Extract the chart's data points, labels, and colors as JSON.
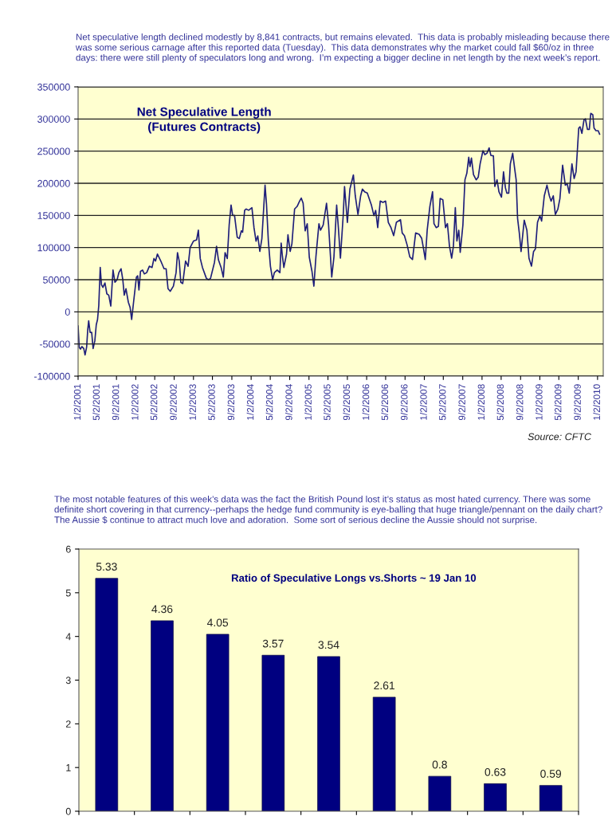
{
  "chart_data": [
    {
      "type": "line",
      "title": "Net Speculative Length\n(Futures Contracts)",
      "color": "#1f1f7a",
      "grid": "y",
      "xlim": [
        "2001-01-02",
        "2010-02-07"
      ],
      "ylim": [
        -100000,
        350000
      ],
      "yticks": [
        -100000,
        -50000,
        0,
        50000,
        100000,
        150000,
        200000,
        250000,
        300000,
        350000
      ],
      "xticks": [
        {
          "value": "2001-01-02",
          "label": "1/2/2001"
        },
        {
          "value": "2001-05-02",
          "label": "5/2/2001"
        },
        {
          "value": "2001-09-02",
          "label": "9/2/2001"
        },
        {
          "value": "2002-01-02",
          "label": "1/2/2002"
        },
        {
          "value": "2002-05-02",
          "label": "5/2/2002"
        },
        {
          "value": "2002-09-02",
          "label": "9/2/2002"
        },
        {
          "value": "2003-01-02",
          "label": "1/2/2003"
        },
        {
          "value": "2003-05-02",
          "label": "5/2/2003"
        },
        {
          "value": "2003-09-02",
          "label": "9/2/2003"
        },
        {
          "value": "2004-01-02",
          "label": "1/2/2004"
        },
        {
          "value": "2004-05-02",
          "label": "5/2/2004"
        },
        {
          "value": "2004-09-02",
          "label": "9/2/2004"
        },
        {
          "value": "2005-01-02",
          "label": "1/2/2005"
        },
        {
          "value": "2005-05-02",
          "label": "5/2/2005"
        },
        {
          "value": "2005-09-02",
          "label": "9/2/2005"
        },
        {
          "value": "2006-01-02",
          "label": "1/2/2006"
        },
        {
          "value": "2006-05-02",
          "label": "5/2/2006"
        },
        {
          "value": "2006-09-02",
          "label": "9/2/2006"
        },
        {
          "value": "2007-01-02",
          "label": "1/2/2007"
        },
        {
          "value": "2007-05-02",
          "label": "5/2/2007"
        },
        {
          "value": "2007-09-02",
          "label": "9/2/2007"
        },
        {
          "value": "2008-01-02",
          "label": "1/2/2008"
        },
        {
          "value": "2008-05-02",
          "label": "5/2/2008"
        },
        {
          "value": "2008-09-02",
          "label": "9/2/2008"
        },
        {
          "value": "2009-01-02",
          "label": "1/2/2009"
        },
        {
          "value": "2009-05-02",
          "label": "5/2/2009"
        },
        {
          "value": "2009-09-02",
          "label": "9/2/2009"
        },
        {
          "value": "2010-01-02",
          "label": "1/2/2010"
        }
      ],
      "x": [
        "2001-01-02",
        "2001-01-09",
        "2001-01-17",
        "2001-01-26",
        "2001-02-07",
        "2001-02-15",
        "2001-02-25",
        "2001-03-04",
        "2001-03-10",
        "2001-03-19",
        "2001-03-29",
        "2001-04-07",
        "2001-04-18",
        "2001-04-27",
        "2001-05-05",
        "2001-05-13",
        "2001-05-22",
        "2001-05-30",
        "2001-06-08",
        "2001-06-21",
        "2001-07-03",
        "2001-07-15",
        "2001-07-28",
        "2001-08-11",
        "2001-08-23",
        "2001-09-06",
        "2001-09-17",
        "2001-10-01",
        "2001-10-12",
        "2001-10-21",
        "2001-11-01",
        "2001-11-16",
        "2001-11-27",
        "2001-12-07",
        "2001-12-19",
        "2002-01-06",
        "2002-01-14",
        "2002-01-22",
        "2002-02-01",
        "2002-02-14",
        "2002-02-25",
        "2002-03-12",
        "2002-03-29",
        "2002-04-15",
        "2002-04-27",
        "2002-05-07",
        "2002-05-19",
        "2002-06-13",
        "2002-06-30",
        "2002-07-13",
        "2002-07-25",
        "2002-08-08",
        "2002-08-28",
        "2002-09-14",
        "2002-09-23",
        "2002-10-04",
        "2002-10-14",
        "2002-10-26",
        "2002-11-13",
        "2002-11-29",
        "2002-12-12",
        "2003-01-02",
        "2003-01-22",
        "2003-02-02",
        "2003-02-14",
        "2003-02-28",
        "2003-03-25",
        "2003-04-08",
        "2003-04-20",
        "2003-05-15",
        "2003-05-28",
        "2003-06-09",
        "2003-06-26",
        "2003-07-10",
        "2003-07-21",
        "2003-08-04",
        "2003-08-16",
        "2003-08-28",
        "2003-09-07",
        "2003-09-19",
        "2003-10-06",
        "2003-10-19",
        "2003-11-01",
        "2003-11-09",
        "2003-11-22",
        "2003-12-01",
        "2003-12-17",
        "2004-01-07",
        "2004-01-20",
        "2004-02-02",
        "2004-02-13",
        "2004-02-26",
        "2004-03-10",
        "2004-03-30",
        "2004-04-08",
        "2004-04-20",
        "2004-05-03",
        "2004-05-17",
        "2004-05-28",
        "2004-06-15",
        "2004-07-02",
        "2004-07-10",
        "2004-07-18",
        "2004-07-27",
        "2004-08-13",
        "2004-08-22",
        "2004-09-05",
        "2004-09-16",
        "2004-10-03",
        "2004-10-19",
        "2004-11-03",
        "2004-11-14",
        "2004-11-26",
        "2004-12-09",
        "2004-12-22",
        "2005-01-04",
        "2005-01-21",
        "2005-02-02",
        "2005-02-15",
        "2005-03-06",
        "2005-03-16",
        "2005-04-02",
        "2005-04-23",
        "2005-05-06",
        "2005-05-26",
        "2005-06-09",
        "2005-06-26",
        "2005-07-07",
        "2005-07-20",
        "2005-08-07",
        "2005-08-15",
        "2005-09-02",
        "2005-09-18",
        "2005-10-10",
        "2005-10-22",
        "2005-11-08",
        "2005-11-25",
        "2005-12-06",
        "2005-12-20",
        "2006-01-06",
        "2006-02-01",
        "2006-02-17",
        "2006-02-28",
        "2006-03-13",
        "2006-03-29",
        "2006-04-15",
        "2006-05-02",
        "2006-05-19",
        "2006-06-05",
        "2006-06-22",
        "2006-07-09",
        "2006-08-04",
        "2006-08-15",
        "2006-08-29",
        "2006-09-15",
        "2006-10-02",
        "2006-10-19",
        "2006-11-08",
        "2006-11-30",
        "2006-12-16",
        "2006-12-25",
        "2007-01-08",
        "2007-01-20",
        "2007-02-06",
        "2007-02-23",
        "2007-03-04",
        "2007-03-18",
        "2007-04-01",
        "2007-04-12",
        "2007-04-29",
        "2007-05-16",
        "2007-05-28",
        "2007-06-10",
        "2007-06-24",
        "2007-07-05",
        "2007-07-17",
        "2007-07-27",
        "2007-08-08",
        "2007-08-17",
        "2007-09-03",
        "2007-09-16",
        "2007-09-28",
        "2007-10-10",
        "2007-10-18",
        "2007-10-27",
        "2007-11-09",
        "2007-11-26",
        "2007-12-09",
        "2007-12-21",
        "2008-01-08",
        "2008-01-20",
        "2008-02-02",
        "2008-02-16",
        "2008-02-27",
        "2008-03-14",
        "2008-03-23",
        "2008-04-06",
        "2008-04-18",
        "2008-05-04",
        "2008-05-17",
        "2008-05-29",
        "2008-06-07",
        "2008-06-19",
        "2008-06-29",
        "2008-07-14",
        "2008-07-27",
        "2008-08-05",
        "2008-08-14",
        "2008-08-25",
        "2008-09-05",
        "2008-09-25",
        "2008-10-12",
        "2008-10-25",
        "2008-11-10",
        "2008-11-23",
        "2008-12-05",
        "2008-12-18",
        "2009-01-02",
        "2009-01-13",
        "2009-01-30",
        "2009-02-16",
        "2009-03-03",
        "2009-03-14",
        "2009-03-28",
        "2009-04-10",
        "2009-04-26",
        "2009-05-09",
        "2009-05-26",
        "2009-06-12",
        "2009-06-24",
        "2009-07-07",
        "2009-07-24",
        "2009-08-07",
        "2009-08-19",
        "2009-09-05",
        "2009-09-13",
        "2009-09-25",
        "2009-10-08",
        "2009-10-17",
        "2009-10-30",
        "2009-11-11",
        "2009-11-20",
        "2009-12-03",
        "2009-12-11",
        "2009-12-23",
        "2010-01-06",
        "2010-01-15"
      ],
      "values": [
        -22000,
        -55000,
        -58000,
        -54000,
        -57000,
        -67000,
        -55000,
        -28000,
        -14000,
        -32000,
        -32000,
        -57000,
        -45000,
        -20000,
        -12000,
        10000,
        69000,
        42000,
        38000,
        45000,
        28000,
        26000,
        9000,
        65000,
        46000,
        50000,
        61000,
        67000,
        50000,
        26000,
        36000,
        15000,
        7000,
        -12000,
        15000,
        54000,
        56000,
        34000,
        63000,
        65000,
        59000,
        61000,
        71000,
        69000,
        83000,
        79000,
        90000,
        77000,
        67000,
        67000,
        36000,
        32000,
        40000,
        61000,
        92000,
        79000,
        46000,
        44000,
        79000,
        71000,
        100000,
        110000,
        112000,
        127000,
        83000,
        69000,
        52000,
        50000,
        52000,
        77000,
        102000,
        81000,
        69000,
        54000,
        92000,
        83000,
        135000,
        166000,
        150000,
        150000,
        116000,
        114000,
        126000,
        124000,
        158000,
        160000,
        158000,
        162000,
        131000,
        110000,
        118000,
        94000,
        114000,
        197000,
        168000,
        110000,
        71000,
        50000,
        61000,
        65000,
        61000,
        107000,
        86000,
        69000,
        90000,
        120000,
        94000,
        106000,
        160000,
        164000,
        172000,
        177000,
        169000,
        126000,
        137000,
        85000,
        63000,
        40000,
        86000,
        137000,
        127000,
        135000,
        169000,
        135000,
        54000,
        85500,
        166000,
        131000,
        83500,
        151600,
        195000,
        139000,
        191000,
        213000,
        180500,
        151600,
        180500,
        191000,
        186800,
        184700,
        166100,
        149600,
        157800,
        131000,
        172300,
        170200,
        172300,
        139200,
        131000,
        118600,
        139200,
        143400,
        122700,
        118600,
        104100,
        85500,
        81400,
        122700,
        120700,
        114500,
        102100,
        81400,
        126900,
        164000,
        187000,
        137200,
        131000,
        133000,
        176400,
        174400,
        131000,
        137200,
        102100,
        83500,
        102100,
        162000,
        110300,
        126900,
        92600,
        135100,
        205400,
        215700,
        240500,
        226000,
        239200,
        213600,
        205400,
        209500,
        230200,
        250800,
        244600,
        246700,
        255000,
        243400,
        242600,
        195000,
        205400,
        186800,
        178500,
        217800,
        193000,
        184700,
        184700,
        230200,
        246700,
        221900,
        205400,
        145400,
        122700,
        93800,
        142600,
        126900,
        83500,
        71100,
        93800,
        97900,
        139200,
        149600,
        141300,
        180500,
        197000,
        180500,
        172300,
        180500,
        151600,
        159900,
        176400,
        228100,
        197100,
        199200,
        184700,
        230200,
        207400,
        217800,
        285900,
        288000,
        277700,
        298300,
        300400,
        283900,
        283900,
        308700,
        306600,
        285900,
        281800,
        281800,
        276400
      ],
      "annotations": [
        "Net speculative length declined modestly by 8,841 contracts, but remains elevated.  This data is probably misleading because there was some serious carnage after this reported data (Tuesday).  This data demonstrates why the market could fall $60/oz in three days: there were still plenty of speculators long and wrong.  I’m expecting a bigger decline in net length by the next week’s report.",
        "Source: CFTC"
      ]
    },
    {
      "type": "bar",
      "title": "Ratio of Speculative Longs vs.Shorts ~ 19 Jan 10",
      "categories": [
        null,
        null,
        null,
        null,
        null,
        null,
        null,
        null,
        null
      ],
      "values": [
        5.33,
        4.36,
        4.05,
        3.57,
        3.54,
        2.61,
        0.8,
        0.63,
        0.59
      ],
      "color": "#000080",
      "data_labels": true,
      "ylim": [
        0,
        6
      ],
      "yticks": [
        0,
        1,
        2,
        3,
        4,
        5,
        6
      ],
      "annotations": [
        "The most notable features of this week’s data was the fact the British Pound lost it’s status as most hated currency. There was some definite short covering in that currency--perhaps the hedge fund community is eye-balling that huge triangle/pennant on the daily chart? The Aussie $ continue to attract much love and adoration.  Some sort of serious decline the Aussie should not surprise."
      ]
    }
  ]
}
